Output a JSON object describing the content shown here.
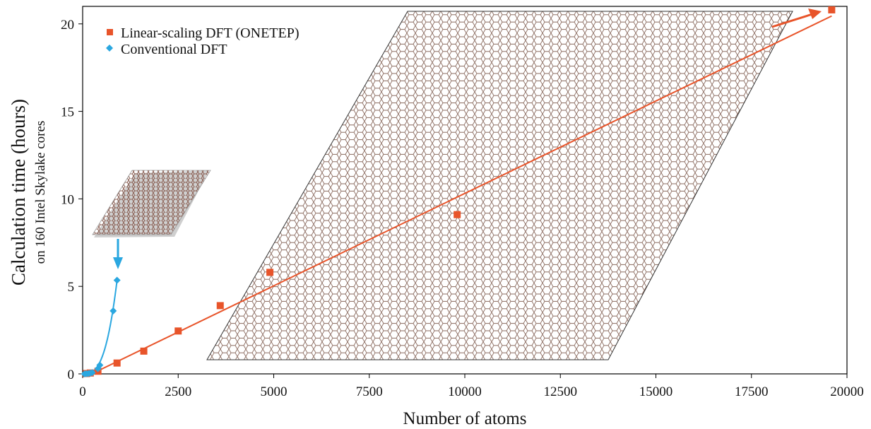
{
  "chart_data": {
    "type": "scatter",
    "xlabel": "Number of atoms",
    "ylabel": "Calculation time (hours)",
    "ylabel_sub": "on 160 Intel Skylake cores",
    "xlim": [
      0,
      20000
    ],
    "ylim": [
      0,
      21
    ],
    "x_ticks": [
      0,
      2500,
      5000,
      7500,
      10000,
      12500,
      15000,
      17500,
      20000
    ],
    "y_ticks": [
      0,
      5,
      10,
      15,
      20
    ],
    "grid": false,
    "legend_position": "top-left",
    "series": [
      {
        "name": "Linear-scaling DFT (ONETEP)",
        "color": "#e8542a",
        "marker": "square",
        "points": [
          [
            100,
            0.02
          ],
          [
            200,
            0.05
          ],
          [
            400,
            0.15
          ],
          [
            900,
            0.62
          ],
          [
            1600,
            1.3
          ],
          [
            2500,
            2.45
          ],
          [
            3600,
            3.9
          ],
          [
            4900,
            5.8
          ],
          [
            9800,
            9.1
          ],
          [
            19600,
            20.8
          ]
        ],
        "fit": "linear",
        "fit_line": [
          [
            0,
            -0.25
          ],
          [
            19600,
            20.45
          ]
        ]
      },
      {
        "name": "Conventional DFT",
        "color": "#2aa7e0",
        "marker": "diamond",
        "points": [
          [
            50,
            0.0
          ],
          [
            100,
            0.01
          ],
          [
            150,
            0.02
          ],
          [
            200,
            0.04
          ],
          [
            250,
            0.07
          ],
          [
            400,
            0.3
          ],
          [
            450,
            0.5
          ],
          [
            800,
            3.6
          ],
          [
            900,
            5.35
          ]
        ],
        "fit": "cubic",
        "fit_coef": 7.34e-09
      }
    ]
  }
}
